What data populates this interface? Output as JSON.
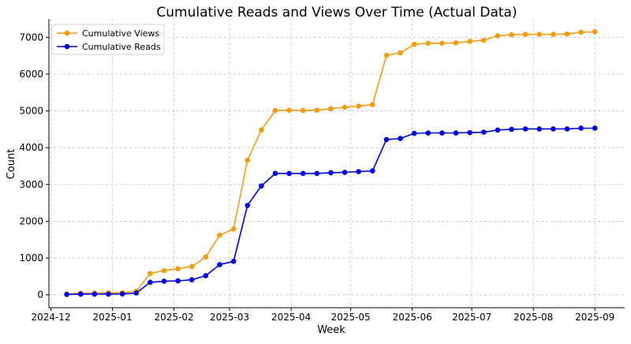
{
  "colors": {
    "views": "#f39c12",
    "reads": "#0000e6"
  },
  "chart_data": {
    "type": "line",
    "title": "Cumulative Reads and Views Over Time (Actual Data)",
    "xlabel": "Week",
    "ylabel": "Count",
    "ylim": [
      -350,
      7500
    ],
    "xlim": [
      "2024-11-30",
      "2025-09-16"
    ],
    "grid": true,
    "legend_position": "top-left",
    "xticks": [
      "2024-12",
      "2025-01",
      "2025-02",
      "2025-03",
      "2025-04",
      "2025-05",
      "2025-06",
      "2025-07",
      "2025-08",
      "2025-09"
    ],
    "yticks": [
      0,
      1000,
      2000,
      3000,
      4000,
      5000,
      6000,
      7000
    ],
    "x": [
      "2024-12-09",
      "2024-12-16",
      "2024-12-23",
      "2024-12-30",
      "2025-01-06",
      "2025-01-13",
      "2025-01-20",
      "2025-01-27",
      "2025-02-03",
      "2025-02-10",
      "2025-02-17",
      "2025-02-24",
      "2025-03-03",
      "2025-03-10",
      "2025-03-17",
      "2025-03-24",
      "2025-03-31",
      "2025-04-07",
      "2025-04-14",
      "2025-04-21",
      "2025-04-28",
      "2025-05-05",
      "2025-05-12",
      "2025-05-19",
      "2025-05-26",
      "2025-06-02",
      "2025-06-09",
      "2025-06-16",
      "2025-06-23",
      "2025-06-30",
      "2025-07-07",
      "2025-07-14",
      "2025-07-21",
      "2025-07-28",
      "2025-08-04",
      "2025-08-11",
      "2025-08-18",
      "2025-08-25",
      "2025-09-01"
    ],
    "series": [
      {
        "name": "Cumulative Views",
        "color": "#f39c12",
        "values": [
          20,
          45,
          50,
          55,
          60,
          100,
          580,
          660,
          710,
          770,
          1030,
          1620,
          1790,
          3660,
          4480,
          5010,
          5020,
          5010,
          5020,
          5060,
          5100,
          5130,
          5170,
          6510,
          6580,
          6810,
          6840,
          6840,
          6850,
          6890,
          6920,
          7040,
          7070,
          7080,
          7080,
          7080,
          7090,
          7140,
          7150
        ]
      },
      {
        "name": "Cumulative Reads",
        "color": "#0000e6",
        "values": [
          10,
          20,
          20,
          20,
          25,
          50,
          340,
          370,
          380,
          410,
          520,
          820,
          910,
          2430,
          2960,
          3300,
          3300,
          3300,
          3300,
          3320,
          3330,
          3350,
          3370,
          4220,
          4250,
          4390,
          4400,
          4400,
          4400,
          4410,
          4420,
          4480,
          4500,
          4510,
          4510,
          4510,
          4510,
          4530,
          4530
        ]
      }
    ]
  }
}
